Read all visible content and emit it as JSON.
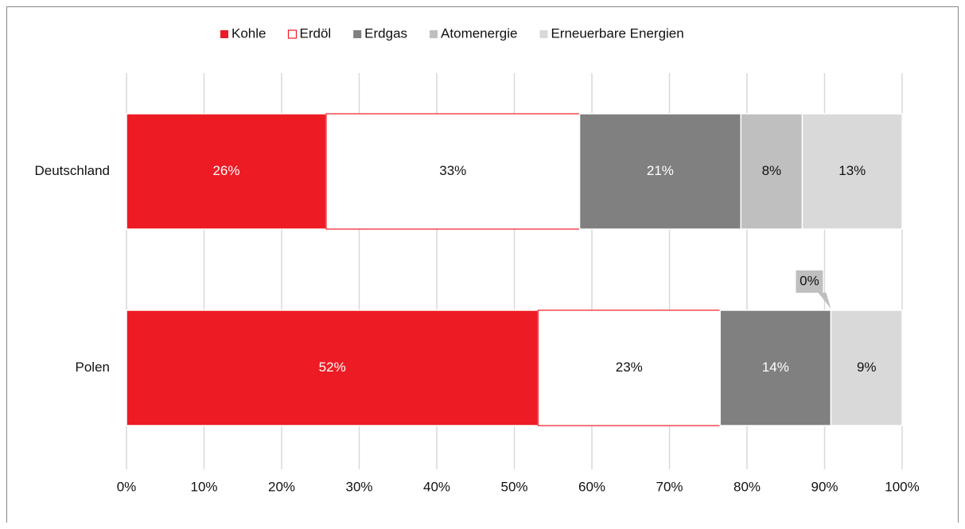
{
  "chart_data": {
    "type": "bar",
    "orientation": "horizontal",
    "stacking": "percent",
    "categories": [
      "Deutschland",
      "Polen"
    ],
    "series": [
      {
        "name": "Kohle",
        "color": "#ed1c24",
        "values": [
          26,
          52
        ],
        "value_labels": [
          "26%",
          "52%"
        ]
      },
      {
        "name": "Erdöl",
        "color": "#ffffff",
        "edgecolor": "#ed1c24",
        "values": [
          33,
          23
        ],
        "value_labels": [
          "33%",
          "23%"
        ]
      },
      {
        "name": "Erdgas",
        "color": "#808080",
        "values": [
          21,
          14
        ],
        "value_labels": [
          "21%",
          "14%"
        ]
      },
      {
        "name": "Atomenergie",
        "color": "#bfbfbf",
        "values": [
          8,
          0
        ],
        "value_labels": [
          "8%",
          "0%"
        ]
      },
      {
        "name": "Erneuerbare Energien",
        "color": "#d9d9d9",
        "values": [
          13,
          9
        ],
        "value_labels": [
          "13%",
          "9%"
        ]
      }
    ],
    "xlim": [
      0,
      100
    ],
    "xticks": [
      {
        "value": 0,
        "label": "0%"
      },
      {
        "value": 10,
        "label": "10%"
      },
      {
        "value": 20,
        "label": "20%"
      },
      {
        "value": 30,
        "label": "30%"
      },
      {
        "value": 40,
        "label": "40%"
      },
      {
        "value": 50,
        "label": "50%"
      },
      {
        "value": 60,
        "label": "60%"
      },
      {
        "value": 70,
        "label": "70%"
      },
      {
        "value": 80,
        "label": "80%"
      },
      {
        "value": 90,
        "label": "90%"
      },
      {
        "value": 100,
        "label": "100%"
      }
    ],
    "grid": true,
    "legend": "top"
  }
}
